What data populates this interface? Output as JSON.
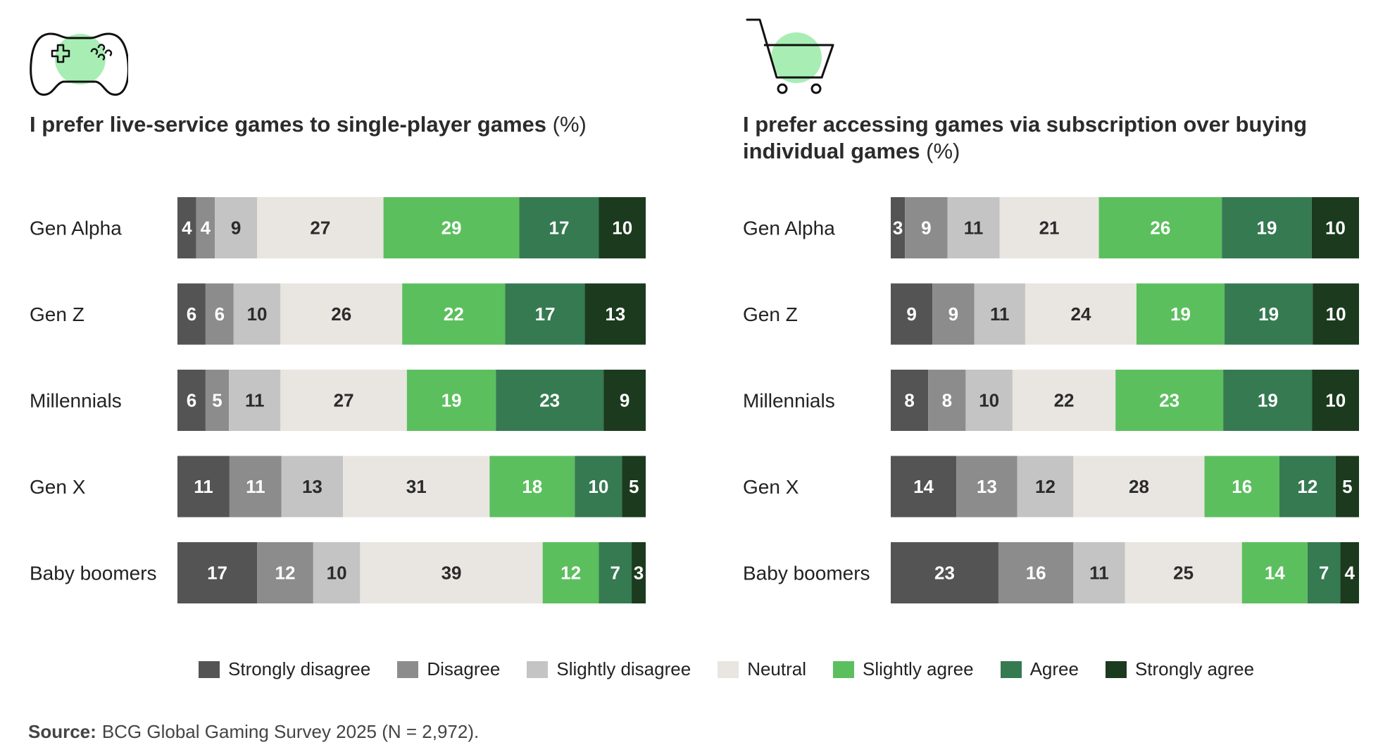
{
  "source": {
    "label": "Source:",
    "text": "BCG Global Gaming Survey 2025 (N = 2,972)."
  },
  "legend": [
    {
      "label": "Strongly disagree",
      "color": "#545454"
    },
    {
      "label": "Disagree",
      "color": "#8c8c8c"
    },
    {
      "label": "Slightly disagree",
      "color": "#c4c4c4"
    },
    {
      "label": "Neutral",
      "color": "#e9e5e0"
    },
    {
      "label": "Slightly agree",
      "color": "#5cbf5e"
    },
    {
      "label": "Agree",
      "color": "#367a52"
    },
    {
      "label": "Strongly agree",
      "color": "#1b3a1e"
    }
  ],
  "icons": {
    "left": "game-controller-icon",
    "right": "shopping-cart-icon"
  },
  "chart_data": [
    {
      "type": "bar",
      "orientation": "horizontal-stacked",
      "title": "I prefer live-service games to single-player games",
      "title_unit": "(%)",
      "categories": [
        "Gen Alpha",
        "Gen Z",
        "Millennials",
        "Gen X",
        "Baby boomers"
      ],
      "series": [
        {
          "name": "Strongly disagree",
          "values": [
            4,
            6,
            6,
            11,
            17
          ]
        },
        {
          "name": "Disagree",
          "values": [
            4,
            6,
            5,
            11,
            12
          ]
        },
        {
          "name": "Slightly disagree",
          "values": [
            9,
            10,
            11,
            13,
            10
          ]
        },
        {
          "name": "Neutral",
          "values": [
            27,
            26,
            27,
            31,
            39
          ]
        },
        {
          "name": "Slightly agree",
          "values": [
            29,
            22,
            19,
            18,
            12
          ]
        },
        {
          "name": "Agree",
          "values": [
            17,
            17,
            23,
            10,
            7
          ]
        },
        {
          "name": "Strongly agree",
          "values": [
            10,
            13,
            9,
            5,
            3
          ]
        }
      ],
      "legend_position": "bottom",
      "grid": false
    },
    {
      "type": "bar",
      "orientation": "horizontal-stacked",
      "title": "I prefer accessing games via subscription over buying individual games",
      "title_unit": "(%)",
      "categories": [
        "Gen Alpha",
        "Gen Z",
        "Millennials",
        "Gen X",
        "Baby boomers"
      ],
      "series": [
        {
          "name": "Strongly disagree",
          "values": [
            3,
            9,
            8,
            14,
            23
          ]
        },
        {
          "name": "Disagree",
          "values": [
            9,
            9,
            8,
            13,
            16
          ]
        },
        {
          "name": "Slightly disagree",
          "values": [
            11,
            11,
            10,
            12,
            11
          ]
        },
        {
          "name": "Neutral",
          "values": [
            21,
            24,
            22,
            28,
            25
          ]
        },
        {
          "name": "Slightly agree",
          "values": [
            26,
            19,
            23,
            16,
            14
          ]
        },
        {
          "name": "Agree",
          "values": [
            19,
            19,
            19,
            12,
            7
          ]
        },
        {
          "name": "Strongly agree",
          "values": [
            10,
            10,
            10,
            5,
            4
          ]
        }
      ],
      "legend_position": "bottom",
      "grid": false
    }
  ]
}
